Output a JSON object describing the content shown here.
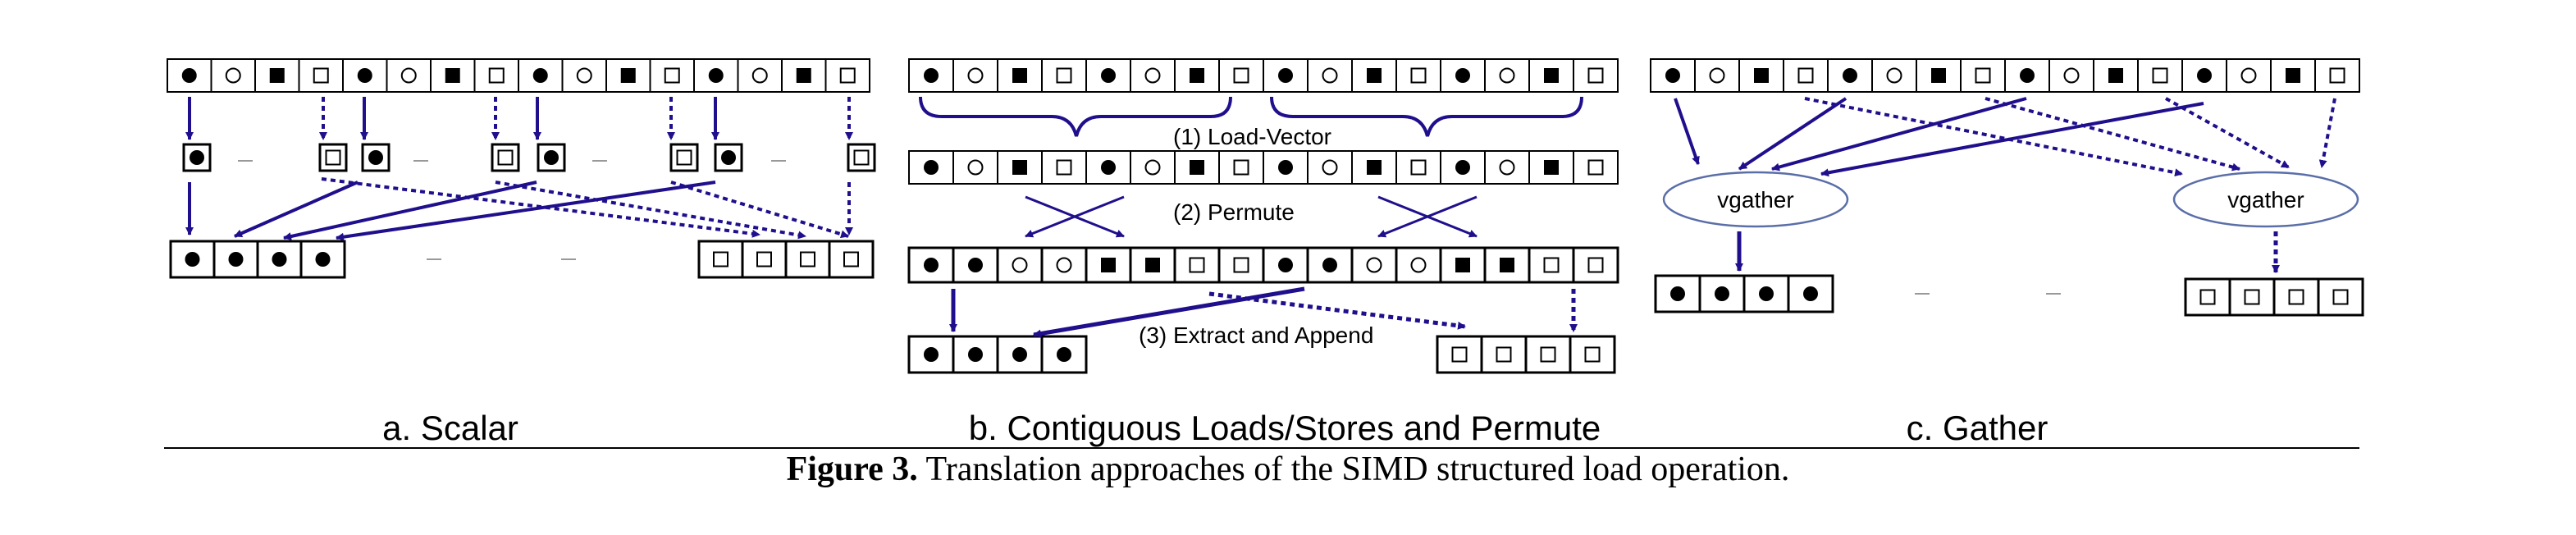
{
  "colors": {
    "arrow": "#1f0f8c",
    "ellipse_stroke": "#5a6ea8",
    "box_stroke": "#000000"
  },
  "panel_a": {
    "title": "a. Scalar"
  },
  "panel_b": {
    "title": "b. Contiguous Loads/Stores and Permute",
    "step1": "(1) Load-Vector",
    "step2": "(2) Permute",
    "step3": "(3) Extract and Append"
  },
  "panel_c": {
    "title": "c. Gather",
    "gather_label_left": "vgather",
    "gather_label_right": "vgather"
  },
  "caption": {
    "label": "Figure 3.",
    "text": "Translation approaches of the SIMD structured load operation."
  },
  "sequences": {
    "input16": [
      "filled-circle",
      "open-circle",
      "filled-square",
      "open-square",
      "filled-circle",
      "open-circle",
      "filled-square",
      "open-square",
      "filled-circle",
      "open-circle",
      "filled-square",
      "open-square",
      "filled-circle",
      "open-circle",
      "filled-square",
      "open-square"
    ],
    "permute_in": [
      "filled-circle",
      "open-circle",
      "filled-square",
      "open-square",
      "filled-circle",
      "open-circle",
      "filled-square",
      "open-square"
    ],
    "permute_out": [
      "filled-circle",
      "filled-circle",
      "open-circle",
      "open-circle",
      "filled-square",
      "filled-square",
      "open-square",
      "open-square"
    ],
    "output_filled": [
      "filled-circle",
      "filled-circle",
      "filled-circle",
      "filled-circle"
    ],
    "output_open": [
      "open-square",
      "open-square",
      "open-square",
      "open-square"
    ]
  }
}
